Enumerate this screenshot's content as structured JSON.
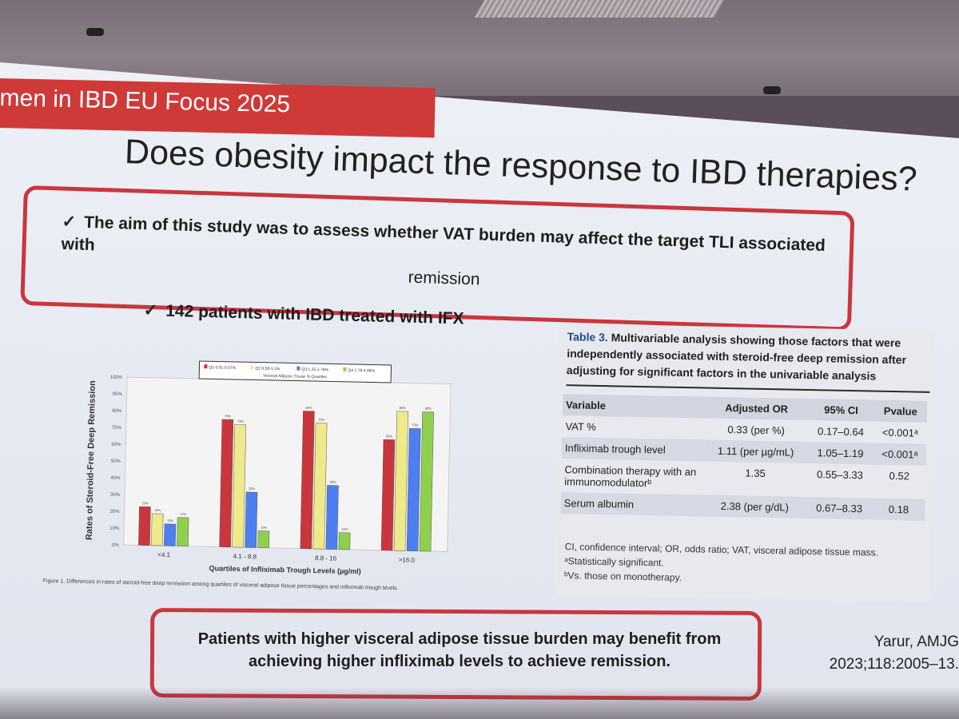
{
  "banner": "men in IBD EU Focus 2025",
  "title": "Does obesity impact the response to IBD therapies?",
  "aim": {
    "check": "✓",
    "line1": "The aim of this study was to assess whether VAT burden may affect the target TLI associated with",
    "line2": "remission"
  },
  "patients": "142 patients with IBD treated with IFX",
  "colors": {
    "red": "#c9373d",
    "yellow": "#eeea8a",
    "blue": "#4d7ff0",
    "green": "#8fcf4e",
    "banner": "#cf3a38"
  },
  "chart_data": {
    "type": "bar",
    "title": "Quartiles of Infliximab Trough Levels (µg/ml)",
    "xlabel": "Quartiles of Infliximab Trough Levels (µg/ml)",
    "ylabel": "Rates of Steroid-Free Deep Remission",
    "ylim": [
      0,
      100
    ],
    "yticks": [
      "0%",
      "10%",
      "20%",
      "30%",
      "40%",
      "50%",
      "60%",
      "70%",
      "80%",
      "90%",
      "100%"
    ],
    "legend_title": "Visceral Adipose Tissue % Quartiles",
    "categories": [
      "<4.1",
      "4.1 - 8.8",
      "8.8 - 16",
      ">16.0"
    ],
    "series": [
      {
        "name": "Q1 0.01-0.57%",
        "values": [
          23,
          76,
          82,
          66
        ]
      },
      {
        "name": "Q2 0.58-1.1%",
        "values": [
          19,
          73,
          75,
          83
        ]
      },
      {
        "name": "Q3 1.25-1.76%",
        "values": [
          13,
          33,
          38,
          73
        ]
      },
      {
        "name": "Q4 1.78-4.84%",
        "values": [
          17,
          10,
          10,
          83
        ]
      }
    ],
    "caption": "Figure 1. Differences in rates of steroid-free deep remission among quartiles of visceral adipose tissue percentages and infliximab trough levels."
  },
  "table": {
    "label": "Table 3.",
    "caption": "Multivariable analysis showing those factors that were independently associated with steroid-free deep remission after adjusting for significant factors in the univariable analysis",
    "headers": [
      "Variable",
      "Adjusted OR",
      "95% CI",
      "Pvalue"
    ],
    "rows": [
      {
        "variable": "VAT %",
        "or": "0.33 (per %)",
        "ci": "0.17–0.64",
        "p": "<0.001ᵃ"
      },
      {
        "variable": "Infliximab trough level",
        "or": "1.11 (per µg/mL)",
        "ci": "1.05–1.19",
        "p": "<0.001ᵃ"
      },
      {
        "variable": "Combination therapy with an immunomodulatorᵇ",
        "or": "1.35",
        "ci": "0.55–3.33",
        "p": "0.52"
      },
      {
        "variable": "Serum albumin",
        "or": "2.38 (per g/dL)",
        "ci": "0.67–8.33",
        "p": "0.18"
      }
    ],
    "notes": [
      "CI, confidence interval; OR, odds ratio; VAT, visceral adipose tissue mass.",
      "ᵃStatistically significant.",
      "ᵇVs. those on monotherapy."
    ]
  },
  "conclusion": "Patients with higher visceral adipose tissue burden may benefit from achieving higher infliximab levels to achieve remission.",
  "reference": {
    "line1": "Yarur, AMJG",
    "line2": "2023;118:2005–13."
  }
}
